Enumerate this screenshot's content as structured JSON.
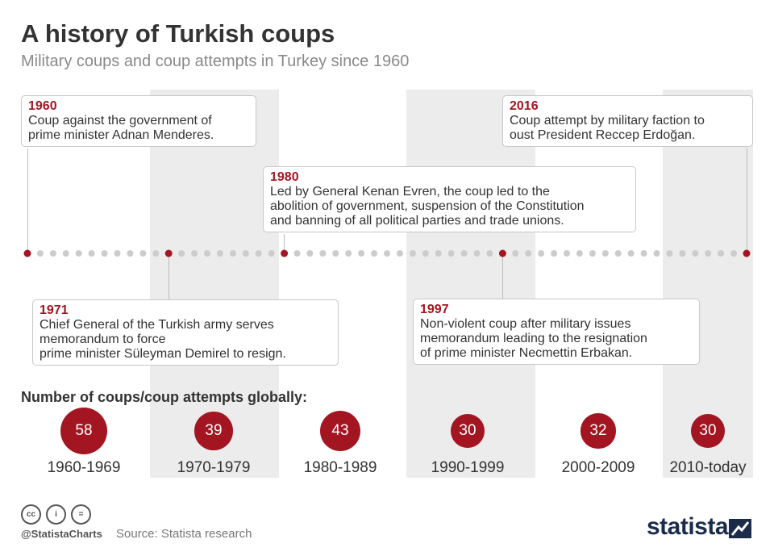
{
  "header": {
    "title": "A history of Turkish coups",
    "subtitle": "Military coups and coup attempts in Turkey since 1960"
  },
  "colors": {
    "accent": "#a31621",
    "band": "#ececec",
    "dot": "#cccccc",
    "brand": "#1b2c4b"
  },
  "chart_data": {
    "type": "table",
    "title": "A history of Turkish coups",
    "subtitle": "Military coups and coup attempts in Turkey since 1960",
    "timeline": {
      "range": [
        1960,
        2016
      ],
      "events": [
        {
          "year": "1960",
          "text": "Coup against the government of\nprime minister Adnan Menderes."
        },
        {
          "year": "1971",
          "text": "Chief General of the Turkish army serves\nmemorandum to force\nprime minister Süleyman Demirel to resign."
        },
        {
          "year": "1980",
          "text": "Led by General Kenan Evren, the coup led to the\nabolition of government, suspension of the Constitution\nand banning of all political parties and trade unions."
        },
        {
          "year": "1997",
          "text": "Non-violent coup after military issues\nmemorandum leading to the resignation\nof prime minister Necmettin Erbakan."
        },
        {
          "year": "2016",
          "text": "Coup attempt by military faction to\noust President Reccep Erdoğan."
        }
      ]
    },
    "global_counts": {
      "label": "Number of coups/coup attempts globally:",
      "categories": [
        "1960-1969",
        "1970-1979",
        "1980-1989",
        "1990-1999",
        "2000-2009",
        "2010-today"
      ],
      "values": [
        58,
        39,
        43,
        30,
        32,
        30
      ]
    }
  },
  "footer": {
    "license_icons": [
      "cc-icon",
      "attribution-icon",
      "no-derivatives-icon"
    ],
    "license_glyphs": [
      "cc",
      "i",
      "="
    ],
    "handle": "@StatistaCharts",
    "source": "Source: Statista research",
    "brand": "statista"
  }
}
